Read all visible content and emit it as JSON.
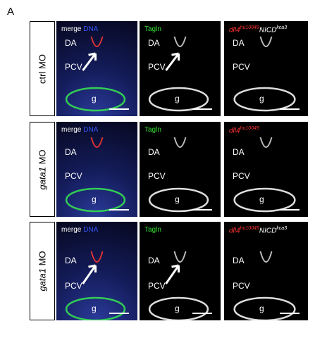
{
  "panel_label": "A",
  "rows": [
    {
      "label": [
        {
          "text": "ctrl MO",
          "italic": false
        }
      ],
      "panels": [
        {
          "header": [
            {
              "text": "merge",
              "color": "#ffffff"
            },
            {
              "text": " DNA",
              "color": "#3355ff"
            }
          ],
          "labels": [
            "DA",
            "PCV",
            "g"
          ]
        },
        {
          "header": [
            {
              "text": "Tagln",
              "color": "#33dd33"
            }
          ],
          "labels": [
            "DA",
            "PCV",
            "g"
          ]
        },
        {
          "header": [
            {
              "text": "dll4",
              "color": "#ff3333",
              "italic": true
            },
            {
              "text": "hu10049",
              "color": "#ff3333",
              "italic": true,
              "sup": true
            },
            {
              "text": "NICD",
              "color": "#ffffff",
              "italic": true
            },
            {
              "text": "kca3",
              "color": "#ffffff",
              "italic": true,
              "sup": true
            }
          ],
          "labels": [
            "DA",
            "PCV",
            "g"
          ]
        }
      ]
    },
    {
      "label": [
        {
          "text": "gata1",
          "italic": true
        },
        {
          "text": " MO",
          "italic": false
        }
      ],
      "panels": [
        {
          "header": [
            {
              "text": "merge",
              "color": "#ffffff"
            },
            {
              "text": " DNA",
              "color": "#3355ff"
            }
          ],
          "labels": [
            "DA",
            "PCV",
            "g"
          ]
        },
        {
          "header": [
            {
              "text": "Tagln",
              "color": "#33dd33"
            }
          ],
          "labels": [
            "DA",
            "PCV",
            "g"
          ]
        },
        {
          "header": [
            {
              "text": "dll4",
              "color": "#ff3333",
              "italic": true
            },
            {
              "text": "hu10049",
              "color": "#ff3333",
              "italic": true,
              "sup": true
            }
          ],
          "labels": [
            "DA",
            "PCV",
            "g"
          ]
        }
      ]
    },
    {
      "label": [
        {
          "text": "gata1",
          "italic": true
        },
        {
          "text": " MO",
          "italic": false
        }
      ],
      "panels": [
        {
          "header": [
            {
              "text": "merge",
              "color": "#ffffff"
            },
            {
              "text": " DNA",
              "color": "#3355ff"
            }
          ],
          "labels": [
            "DA",
            "PCV",
            "g"
          ]
        },
        {
          "header": [
            {
              "text": "Tagln",
              "color": "#33dd33"
            }
          ],
          "labels": [
            "DA",
            "PCV",
            "g"
          ]
        },
        {
          "header": [
            {
              "text": "dll4",
              "color": "#ff3333",
              "italic": true
            },
            {
              "text": "hu10049",
              "color": "#ff3333",
              "italic": true,
              "sup": true
            },
            {
              "text": "NICD",
              "color": "#ffffff",
              "italic": true
            },
            {
              "text": "kca3",
              "color": "#ffffff",
              "italic": true,
              "sup": true
            }
          ],
          "labels": [
            "DA",
            "PCV",
            "g"
          ]
        }
      ]
    }
  ]
}
